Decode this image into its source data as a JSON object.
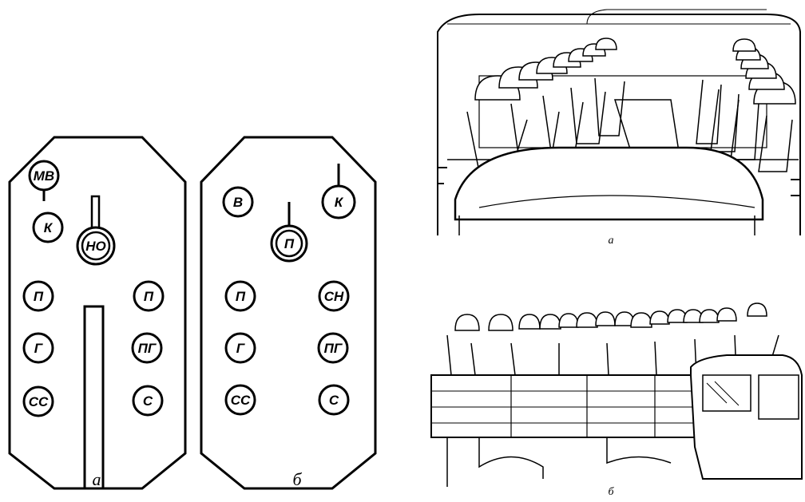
{
  "diagram_a": {
    "caption": "а",
    "seats": {
      "mv": "МВ",
      "k": "К",
      "no": "НО",
      "p_left": "П",
      "p_right": "П",
      "g": "Г",
      "pg": "ПГ",
      "ss": "СС",
      "s": "С"
    }
  },
  "diagram_b": {
    "caption": "б",
    "seats": {
      "v": "В",
      "k": "К",
      "p_center": "П",
      "p_left": "П",
      "sn": "СН",
      "g": "Г",
      "pg": "ПГ",
      "ss": "СС",
      "s": "С"
    }
  },
  "illustration_top": {
    "caption": "а"
  },
  "illustration_bottom": {
    "caption": "б"
  }
}
